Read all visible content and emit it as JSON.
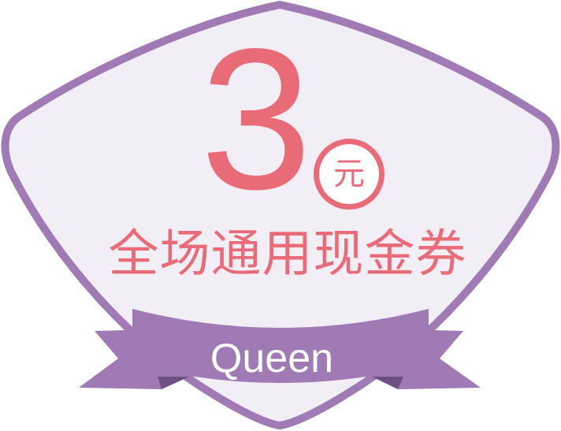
{
  "coupon": {
    "amount": "3",
    "unit": "元",
    "subtitle": "全场通用现金券",
    "brand": "Queen"
  },
  "colors": {
    "shield_fill": "#f2eef6",
    "shield_border": "#a07ab4",
    "ribbon": "#a07ab4",
    "ribbon_shadow": "#6e4f84",
    "accent_text": "#ea6b78",
    "brand_text": "#ffffff"
  }
}
